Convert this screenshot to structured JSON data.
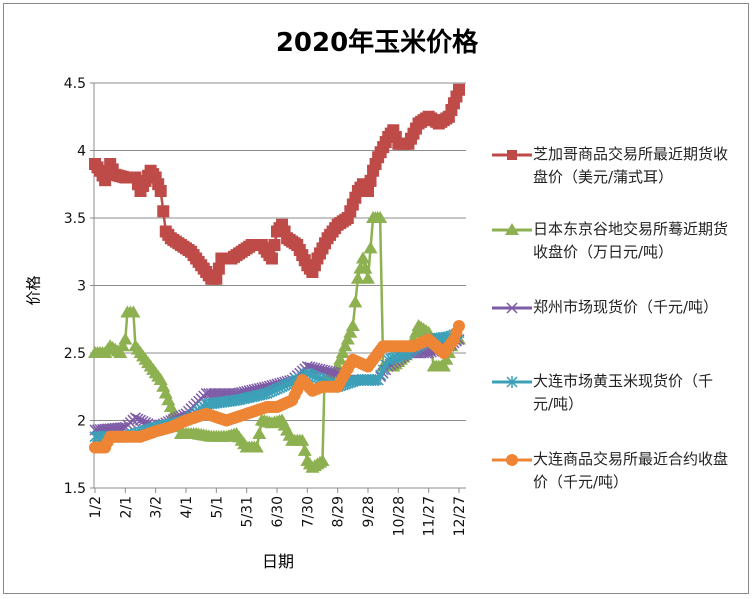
{
  "chart_data": {
    "type": "line",
    "title": "2020年玉米价格",
    "xlabel": "日期",
    "ylabel": "价格",
    "ylim": [
      1.5,
      4.5
    ],
    "yticks": [
      "1.5",
      "2",
      "2.5",
      "3",
      "3.5",
      "4",
      "4.5"
    ],
    "ytick_values": [
      1.5,
      2,
      2.5,
      3,
      3.5,
      4,
      4.5
    ],
    "xticks": [
      "1/2",
      "2/1",
      "3/2",
      "4/1",
      "5/1",
      "5/31",
      "6/30",
      "7/30",
      "8/29",
      "9/28",
      "10/28",
      "11/27",
      "12/27"
    ],
    "x_unit": "days since 1/2",
    "xlim": [
      0,
      362
    ],
    "grid": "horizontal",
    "legend_position": "right",
    "series": [
      {
        "name": "芝加哥商品交易所最近期货收盘价（美元/蒲式耳）",
        "color": "#be4b48",
        "marker": "square",
        "x": [
          0,
          5,
          10,
          15,
          20,
          30,
          40,
          45,
          55,
          60,
          65,
          70,
          75,
          85,
          95,
          105,
          115,
          120,
          125,
          135,
          145,
          155,
          165,
          170,
          175,
          180,
          185,
          190,
          200,
          210,
          215,
          220,
          230,
          240,
          250,
          255,
          260,
          265,
          270,
          275,
          280,
          290,
          295,
          300,
          310,
          320,
          330,
          340,
          350,
          355,
          360
        ],
        "y": [
          3.9,
          3.85,
          3.78,
          3.9,
          3.82,
          3.8,
          3.8,
          3.7,
          3.85,
          3.8,
          3.7,
          3.4,
          3.35,
          3.3,
          3.25,
          3.15,
          3.05,
          3.05,
          3.2,
          3.2,
          3.25,
          3.3,
          3.3,
          3.25,
          3.2,
          3.4,
          3.45,
          3.35,
          3.3,
          3.15,
          3.1,
          3.2,
          3.35,
          3.45,
          3.5,
          3.6,
          3.7,
          3.75,
          3.7,
          3.85,
          3.95,
          4.1,
          4.15,
          4.05,
          4.05,
          4.2,
          4.25,
          4.2,
          4.25,
          4.35,
          4.45
        ]
      },
      {
        "name": "日本东京谷地交易所蓦近期货收盘价（万日元/吨）",
        "color": "#8db150",
        "marker": "triangle",
        "x": [
          0,
          10,
          15,
          25,
          30,
          32,
          38,
          40,
          45,
          55,
          65,
          75,
          85,
          100,
          115,
          130,
          140,
          150,
          160,
          165,
          175,
          185,
          195,
          205,
          210,
          215,
          225,
          227,
          235,
          245,
          255,
          260,
          265,
          270,
          275,
          282,
          285,
          295,
          310,
          320,
          330,
          335,
          345,
          355,
          360
        ],
        "y": [
          2.5,
          2.5,
          2.55,
          2.5,
          2.6,
          2.8,
          2.8,
          2.55,
          2.5,
          2.4,
          2.3,
          2.1,
          1.9,
          1.9,
          1.88,
          1.88,
          1.9,
          1.8,
          1.8,
          2.0,
          1.98,
          2.0,
          1.85,
          1.85,
          1.7,
          1.65,
          1.7,
          2.3,
          2.3,
          2.5,
          2.7,
          3.05,
          3.2,
          3.05,
          3.5,
          3.5,
          2.4,
          2.4,
          2.5,
          2.7,
          2.65,
          2.4,
          2.4,
          2.6,
          2.6
        ]
      },
      {
        "name": "郑州市场现货价（千元/吨）",
        "color": "#7d5ba6",
        "marker": "x",
        "x": [
          0,
          30,
          40,
          60,
          90,
          110,
          140,
          170,
          195,
          210,
          240,
          250,
          270,
          280,
          290,
          310,
          330,
          350,
          360
        ],
        "y": [
          1.93,
          1.95,
          2.02,
          1.95,
          2.05,
          2.2,
          2.2,
          2.25,
          2.3,
          2.4,
          2.35,
          2.3,
          2.3,
          2.3,
          2.4,
          2.5,
          2.5,
          2.55,
          2.6
        ]
      },
      {
        "name": "大连市场黄玉米现货价（千元/吨）",
        "color": "#3ca0b8",
        "marker": "star",
        "x": [
          0,
          30,
          60,
          90,
          110,
          140,
          170,
          200,
          210,
          240,
          260,
          280,
          290,
          310,
          330,
          350,
          360
        ],
        "y": [
          1.88,
          1.88,
          1.95,
          2.0,
          2.12,
          2.15,
          2.2,
          2.3,
          2.35,
          2.25,
          2.3,
          2.3,
          2.45,
          2.5,
          2.6,
          2.62,
          2.65
        ]
      },
      {
        "name": "大连商品交易所最近合约收盘价（千元/吨）",
        "color": "#ed8535",
        "marker": "circle",
        "x": [
          0,
          10,
          15,
          30,
          45,
          60,
          75,
          90,
          110,
          130,
          150,
          170,
          180,
          195,
          205,
          215,
          225,
          240,
          255,
          270,
          285,
          300,
          315,
          330,
          345,
          355,
          360
        ],
        "y": [
          1.8,
          1.8,
          1.88,
          1.88,
          1.88,
          1.92,
          1.95,
          2.0,
          2.05,
          2.0,
          2.05,
          2.1,
          2.1,
          2.15,
          2.3,
          2.22,
          2.25,
          2.25,
          2.45,
          2.4,
          2.55,
          2.55,
          2.55,
          2.6,
          2.5,
          2.6,
          2.7
        ]
      }
    ]
  },
  "legend": {
    "items": [
      "芝加哥商品交易所最近期货收盘价（美元/蒲式耳）",
      "日本东京谷地交易所蓦近期货收盘价（万日元/吨）",
      "郑州市场现货价（千元/吨）",
      "大连市场黄玉米现货价（千元/吨）",
      "大连商品交易所最近合约收盘价（千元/吨）"
    ]
  }
}
